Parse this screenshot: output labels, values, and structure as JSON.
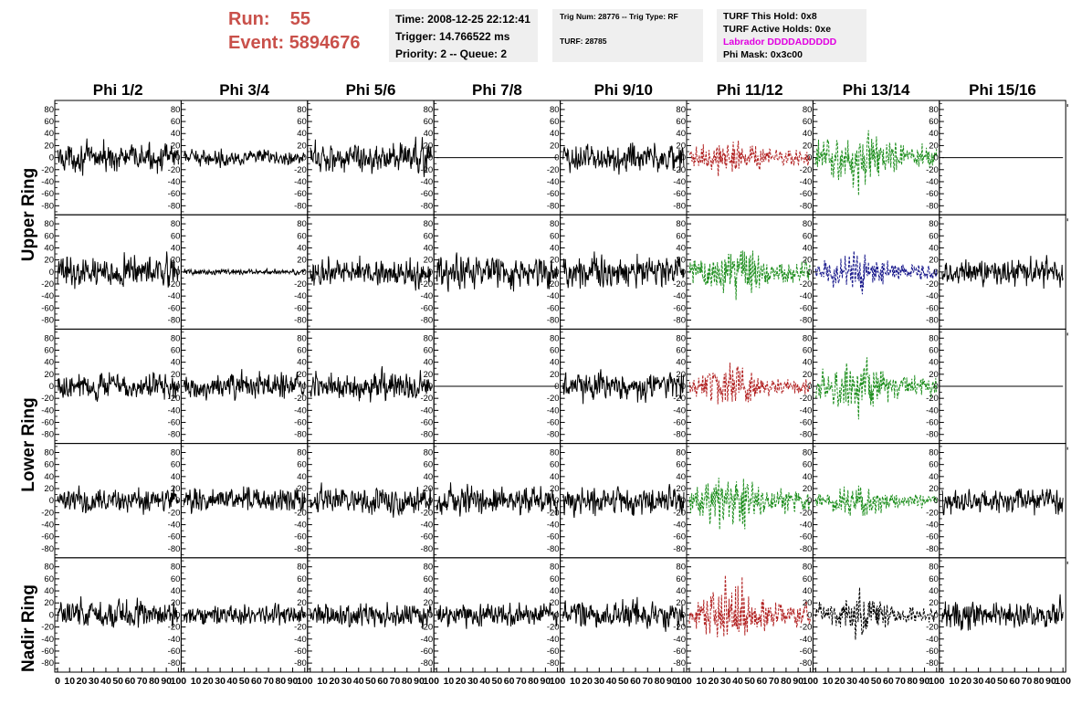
{
  "header": {
    "run_label": "Run:",
    "run_value": "55",
    "event_label": "Event:",
    "event_value": "5894676"
  },
  "time_box": {
    "time": "Time: 2008-12-25 22:12:41",
    "trigger": "Trigger: 14.766522 ms",
    "priority": "Priority: 2 -- Queue: 2"
  },
  "trig_box": {
    "trig_line": "Trig Num: 28776 -- Trig Type: RF",
    "turf_line": "TURF: 28785"
  },
  "turf_box": {
    "this_hold": "TURF This Hold: 0x8",
    "active_holds": "TURF Active Holds: 0xe",
    "labrador": "Labrador DDDDADDDDD",
    "phi_mask": "Phi Mask: 0x3c00"
  },
  "chart_data": {
    "type": "line",
    "columns": [
      "Phi 1/2",
      "Phi 3/4",
      "Phi 5/6",
      "Phi 7/8",
      "Phi 9/10",
      "Phi 11/12",
      "Phi 13/14",
      "Phi 15/16"
    ],
    "ring_labels": [
      {
        "label": "Upper Ring"
      },
      {
        "label": "Lower Ring"
      },
      {
        "label": "Nadir Ring"
      }
    ],
    "y_ticks": [
      80,
      60,
      40,
      20,
      0,
      -20,
      -40,
      -60,
      -80
    ],
    "x_ticks": [
      0,
      10,
      20,
      30,
      40,
      50,
      60,
      70,
      80,
      90,
      100
    ],
    "x_tick_labels": [
      "0",
      "10",
      "20",
      "30",
      "40",
      "50",
      "60",
      "70",
      "80",
      "90",
      "100"
    ],
    "xlim": [
      0,
      100
    ],
    "ylim": [
      -95,
      95
    ],
    "samples": 260,
    "line_colors": {
      "normal": "#000000",
      "red": "#b22222",
      "green": "#1f8f1f",
      "blue": "#1a1a8c"
    },
    "panels": [
      {
        "row": 0,
        "col": 0,
        "color": "normal",
        "amplitude": 14,
        "dashed": false
      },
      {
        "row": 0,
        "col": 1,
        "color": "normal",
        "amplitude": 8,
        "dashed": false
      },
      {
        "row": 0,
        "col": 2,
        "color": "normal",
        "amplitude": 16,
        "dashed": false
      },
      {
        "row": 0,
        "col": 3,
        "color": "normal",
        "amplitude": 0,
        "dashed": false
      },
      {
        "row": 0,
        "col": 4,
        "color": "normal",
        "amplitude": 15,
        "dashed": false
      },
      {
        "row": 0,
        "col": 5,
        "color": "red",
        "amplitude": 13,
        "dashed": true
      },
      {
        "row": 0,
        "col": 6,
        "color": "green",
        "amplitude": 22,
        "dashed": true
      },
      {
        "row": 0,
        "col": 7,
        "color": "normal",
        "amplitude": 0,
        "dashed": false
      },
      {
        "row": 1,
        "col": 0,
        "color": "normal",
        "amplitude": 16,
        "dashed": false
      },
      {
        "row": 1,
        "col": 1,
        "color": "normal",
        "amplitude": 3,
        "dashed": false
      },
      {
        "row": 1,
        "col": 2,
        "color": "normal",
        "amplitude": 14,
        "dashed": false
      },
      {
        "row": 1,
        "col": 3,
        "color": "normal",
        "amplitude": 16,
        "dashed": false
      },
      {
        "row": 1,
        "col": 4,
        "color": "normal",
        "amplitude": 16,
        "dashed": false
      },
      {
        "row": 1,
        "col": 5,
        "color": "green",
        "amplitude": 20,
        "dashed": true
      },
      {
        "row": 1,
        "col": 6,
        "color": "blue",
        "amplitude": 15,
        "dashed": true
      },
      {
        "row": 1,
        "col": 7,
        "color": "normal",
        "amplitude": 14,
        "dashed": false
      },
      {
        "row": 2,
        "col": 0,
        "color": "normal",
        "amplitude": 14,
        "dashed": false
      },
      {
        "row": 2,
        "col": 1,
        "color": "normal",
        "amplitude": 13,
        "dashed": false
      },
      {
        "row": 2,
        "col": 2,
        "color": "normal",
        "amplitude": 14,
        "dashed": false
      },
      {
        "row": 2,
        "col": 3,
        "color": "normal",
        "amplitude": 0,
        "dashed": false
      },
      {
        "row": 2,
        "col": 4,
        "color": "normal",
        "amplitude": 14,
        "dashed": false
      },
      {
        "row": 2,
        "col": 5,
        "color": "red",
        "amplitude": 15,
        "dashed": true
      },
      {
        "row": 2,
        "col": 6,
        "color": "green",
        "amplitude": 20,
        "dashed": true
      },
      {
        "row": 2,
        "col": 7,
        "color": "normal",
        "amplitude": 0,
        "dashed": false
      },
      {
        "row": 3,
        "col": 0,
        "color": "normal",
        "amplitude": 13,
        "dashed": false
      },
      {
        "row": 3,
        "col": 1,
        "color": "normal",
        "amplitude": 13,
        "dashed": false
      },
      {
        "row": 3,
        "col": 2,
        "color": "normal",
        "amplitude": 14,
        "dashed": false
      },
      {
        "row": 3,
        "col": 3,
        "color": "normal",
        "amplitude": 15,
        "dashed": false
      },
      {
        "row": 3,
        "col": 4,
        "color": "normal",
        "amplitude": 15,
        "dashed": false
      },
      {
        "row": 3,
        "col": 5,
        "color": "green",
        "amplitude": 20,
        "dashed": true
      },
      {
        "row": 3,
        "col": 6,
        "color": "green",
        "amplitude": 12,
        "dashed": true
      },
      {
        "row": 3,
        "col": 7,
        "color": "normal",
        "amplitude": 14,
        "dashed": false
      },
      {
        "row": 4,
        "col": 0,
        "color": "normal",
        "amplitude": 15,
        "dashed": false
      },
      {
        "row": 4,
        "col": 1,
        "color": "normal",
        "amplitude": 11,
        "dashed": false
      },
      {
        "row": 4,
        "col": 2,
        "color": "normal",
        "amplitude": 12,
        "dashed": false
      },
      {
        "row": 4,
        "col": 3,
        "color": "normal",
        "amplitude": 12,
        "dashed": false
      },
      {
        "row": 4,
        "col": 4,
        "color": "normal",
        "amplitude": 14,
        "dashed": false
      },
      {
        "row": 4,
        "col": 5,
        "color": "red",
        "amplitude": 22,
        "dashed": true
      },
      {
        "row": 4,
        "col": 6,
        "color": "normal",
        "amplitude": 16,
        "dashed": true
      },
      {
        "row": 4,
        "col": 7,
        "color": "normal",
        "amplitude": 14,
        "dashed": false
      }
    ]
  }
}
